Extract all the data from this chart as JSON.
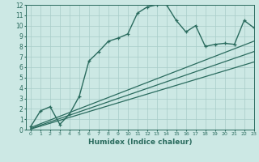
{
  "xlabel": "Humidex (Indice chaleur)",
  "ylabel": "",
  "background_color": "#cce8e4",
  "line_color": "#2a6b5e",
  "grid_color": "#a8ccc8",
  "xlim": [
    -0.5,
    23
  ],
  "ylim": [
    0,
    12
  ],
  "xticks": [
    0,
    1,
    2,
    3,
    4,
    5,
    6,
    7,
    8,
    9,
    10,
    11,
    12,
    13,
    14,
    15,
    16,
    17,
    18,
    19,
    20,
    21,
    22,
    23
  ],
  "yticks": [
    0,
    1,
    2,
    3,
    4,
    5,
    6,
    7,
    8,
    9,
    10,
    11,
    12
  ],
  "lines": [
    {
      "x": [
        0,
        1,
        2,
        3,
        4,
        5,
        6,
        7,
        8,
        9,
        10,
        11,
        12,
        13,
        14,
        15,
        16,
        17,
        18,
        19,
        20,
        21,
        22,
        23
      ],
      "y": [
        0.3,
        1.8,
        2.2,
        0.5,
        1.5,
        3.2,
        6.6,
        7.5,
        8.5,
        8.8,
        9.2,
        11.2,
        11.8,
        12.0,
        12.0,
        10.5,
        9.4,
        10.0,
        8.0,
        8.2,
        8.3,
        8.2,
        10.5,
        9.8
      ],
      "marker": "+",
      "lw": 1.0
    },
    {
      "x": [
        0,
        23
      ],
      "y": [
        0.2,
        8.5
      ],
      "marker": null,
      "lw": 0.9
    },
    {
      "x": [
        0,
        23
      ],
      "y": [
        0.1,
        7.5
      ],
      "marker": null,
      "lw": 0.9
    },
    {
      "x": [
        0,
        23
      ],
      "y": [
        0.05,
        6.5
      ],
      "marker": null,
      "lw": 0.9
    }
  ]
}
